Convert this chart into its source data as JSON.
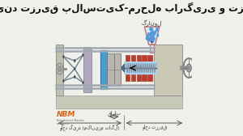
{
  "title": "فرایند تزریق پلاستیک-مرحله بارگیری و تزریق",
  "bg_color": "#f0f0ea",
  "title_color": "#111111",
  "label_qalib": "قالب",
  "label_vahed_girah": "واحد گیره (مکانیزم تاگل)",
  "label_vahed_tazriq": "واحد تزریق",
  "label_granul": "گرانول",
  "nbm_logo_color": "#e06010"
}
